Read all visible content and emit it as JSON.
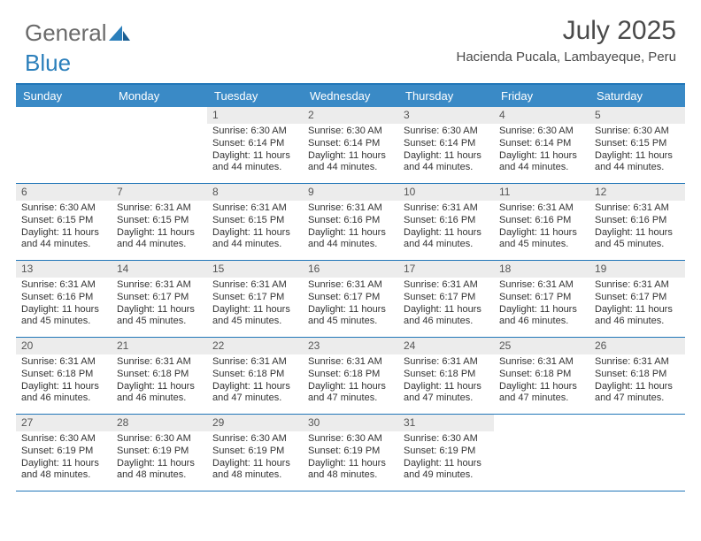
{
  "brand": {
    "word1": "General",
    "word2": "Blue"
  },
  "colors": {
    "header_rule": "#2176b8",
    "weekday_bg": "#3a8ac6",
    "weekday_fg": "#ffffff",
    "daynum_bg": "#ececec",
    "text": "#333333"
  },
  "title": "July 2025",
  "location": "Hacienda Pucala, Lambayeque, Peru",
  "weekdays": [
    "Sunday",
    "Monday",
    "Tuesday",
    "Wednesday",
    "Thursday",
    "Friday",
    "Saturday"
  ],
  "weeks": [
    [
      {
        "n": "",
        "sr": "",
        "ss": "",
        "dl": ""
      },
      {
        "n": "",
        "sr": "",
        "ss": "",
        "dl": ""
      },
      {
        "n": "1",
        "sr": "6:30 AM",
        "ss": "6:14 PM",
        "dl": "11 hours and 44 minutes."
      },
      {
        "n": "2",
        "sr": "6:30 AM",
        "ss": "6:14 PM",
        "dl": "11 hours and 44 minutes."
      },
      {
        "n": "3",
        "sr": "6:30 AM",
        "ss": "6:14 PM",
        "dl": "11 hours and 44 minutes."
      },
      {
        "n": "4",
        "sr": "6:30 AM",
        "ss": "6:14 PM",
        "dl": "11 hours and 44 minutes."
      },
      {
        "n": "5",
        "sr": "6:30 AM",
        "ss": "6:15 PM",
        "dl": "11 hours and 44 minutes."
      }
    ],
    [
      {
        "n": "6",
        "sr": "6:30 AM",
        "ss": "6:15 PM",
        "dl": "11 hours and 44 minutes."
      },
      {
        "n": "7",
        "sr": "6:31 AM",
        "ss": "6:15 PM",
        "dl": "11 hours and 44 minutes."
      },
      {
        "n": "8",
        "sr": "6:31 AM",
        "ss": "6:15 PM",
        "dl": "11 hours and 44 minutes."
      },
      {
        "n": "9",
        "sr": "6:31 AM",
        "ss": "6:16 PM",
        "dl": "11 hours and 44 minutes."
      },
      {
        "n": "10",
        "sr": "6:31 AM",
        "ss": "6:16 PM",
        "dl": "11 hours and 44 minutes."
      },
      {
        "n": "11",
        "sr": "6:31 AM",
        "ss": "6:16 PM",
        "dl": "11 hours and 45 minutes."
      },
      {
        "n": "12",
        "sr": "6:31 AM",
        "ss": "6:16 PM",
        "dl": "11 hours and 45 minutes."
      }
    ],
    [
      {
        "n": "13",
        "sr": "6:31 AM",
        "ss": "6:16 PM",
        "dl": "11 hours and 45 minutes."
      },
      {
        "n": "14",
        "sr": "6:31 AM",
        "ss": "6:17 PM",
        "dl": "11 hours and 45 minutes."
      },
      {
        "n": "15",
        "sr": "6:31 AM",
        "ss": "6:17 PM",
        "dl": "11 hours and 45 minutes."
      },
      {
        "n": "16",
        "sr": "6:31 AM",
        "ss": "6:17 PM",
        "dl": "11 hours and 45 minutes."
      },
      {
        "n": "17",
        "sr": "6:31 AM",
        "ss": "6:17 PM",
        "dl": "11 hours and 46 minutes."
      },
      {
        "n": "18",
        "sr": "6:31 AM",
        "ss": "6:17 PM",
        "dl": "11 hours and 46 minutes."
      },
      {
        "n": "19",
        "sr": "6:31 AM",
        "ss": "6:17 PM",
        "dl": "11 hours and 46 minutes."
      }
    ],
    [
      {
        "n": "20",
        "sr": "6:31 AM",
        "ss": "6:18 PM",
        "dl": "11 hours and 46 minutes."
      },
      {
        "n": "21",
        "sr": "6:31 AM",
        "ss": "6:18 PM",
        "dl": "11 hours and 46 minutes."
      },
      {
        "n": "22",
        "sr": "6:31 AM",
        "ss": "6:18 PM",
        "dl": "11 hours and 47 minutes."
      },
      {
        "n": "23",
        "sr": "6:31 AM",
        "ss": "6:18 PM",
        "dl": "11 hours and 47 minutes."
      },
      {
        "n": "24",
        "sr": "6:31 AM",
        "ss": "6:18 PM",
        "dl": "11 hours and 47 minutes."
      },
      {
        "n": "25",
        "sr": "6:31 AM",
        "ss": "6:18 PM",
        "dl": "11 hours and 47 minutes."
      },
      {
        "n": "26",
        "sr": "6:31 AM",
        "ss": "6:18 PM",
        "dl": "11 hours and 47 minutes."
      }
    ],
    [
      {
        "n": "27",
        "sr": "6:30 AM",
        "ss": "6:19 PM",
        "dl": "11 hours and 48 minutes."
      },
      {
        "n": "28",
        "sr": "6:30 AM",
        "ss": "6:19 PM",
        "dl": "11 hours and 48 minutes."
      },
      {
        "n": "29",
        "sr": "6:30 AM",
        "ss": "6:19 PM",
        "dl": "11 hours and 48 minutes."
      },
      {
        "n": "30",
        "sr": "6:30 AM",
        "ss": "6:19 PM",
        "dl": "11 hours and 48 minutes."
      },
      {
        "n": "31",
        "sr": "6:30 AM",
        "ss": "6:19 PM",
        "dl": "11 hours and 49 minutes."
      },
      {
        "n": "",
        "sr": "",
        "ss": "",
        "dl": ""
      },
      {
        "n": "",
        "sr": "",
        "ss": "",
        "dl": ""
      }
    ]
  ],
  "labels": {
    "sunrise": "Sunrise: ",
    "sunset": "Sunset: ",
    "daylight": "Daylight: "
  }
}
